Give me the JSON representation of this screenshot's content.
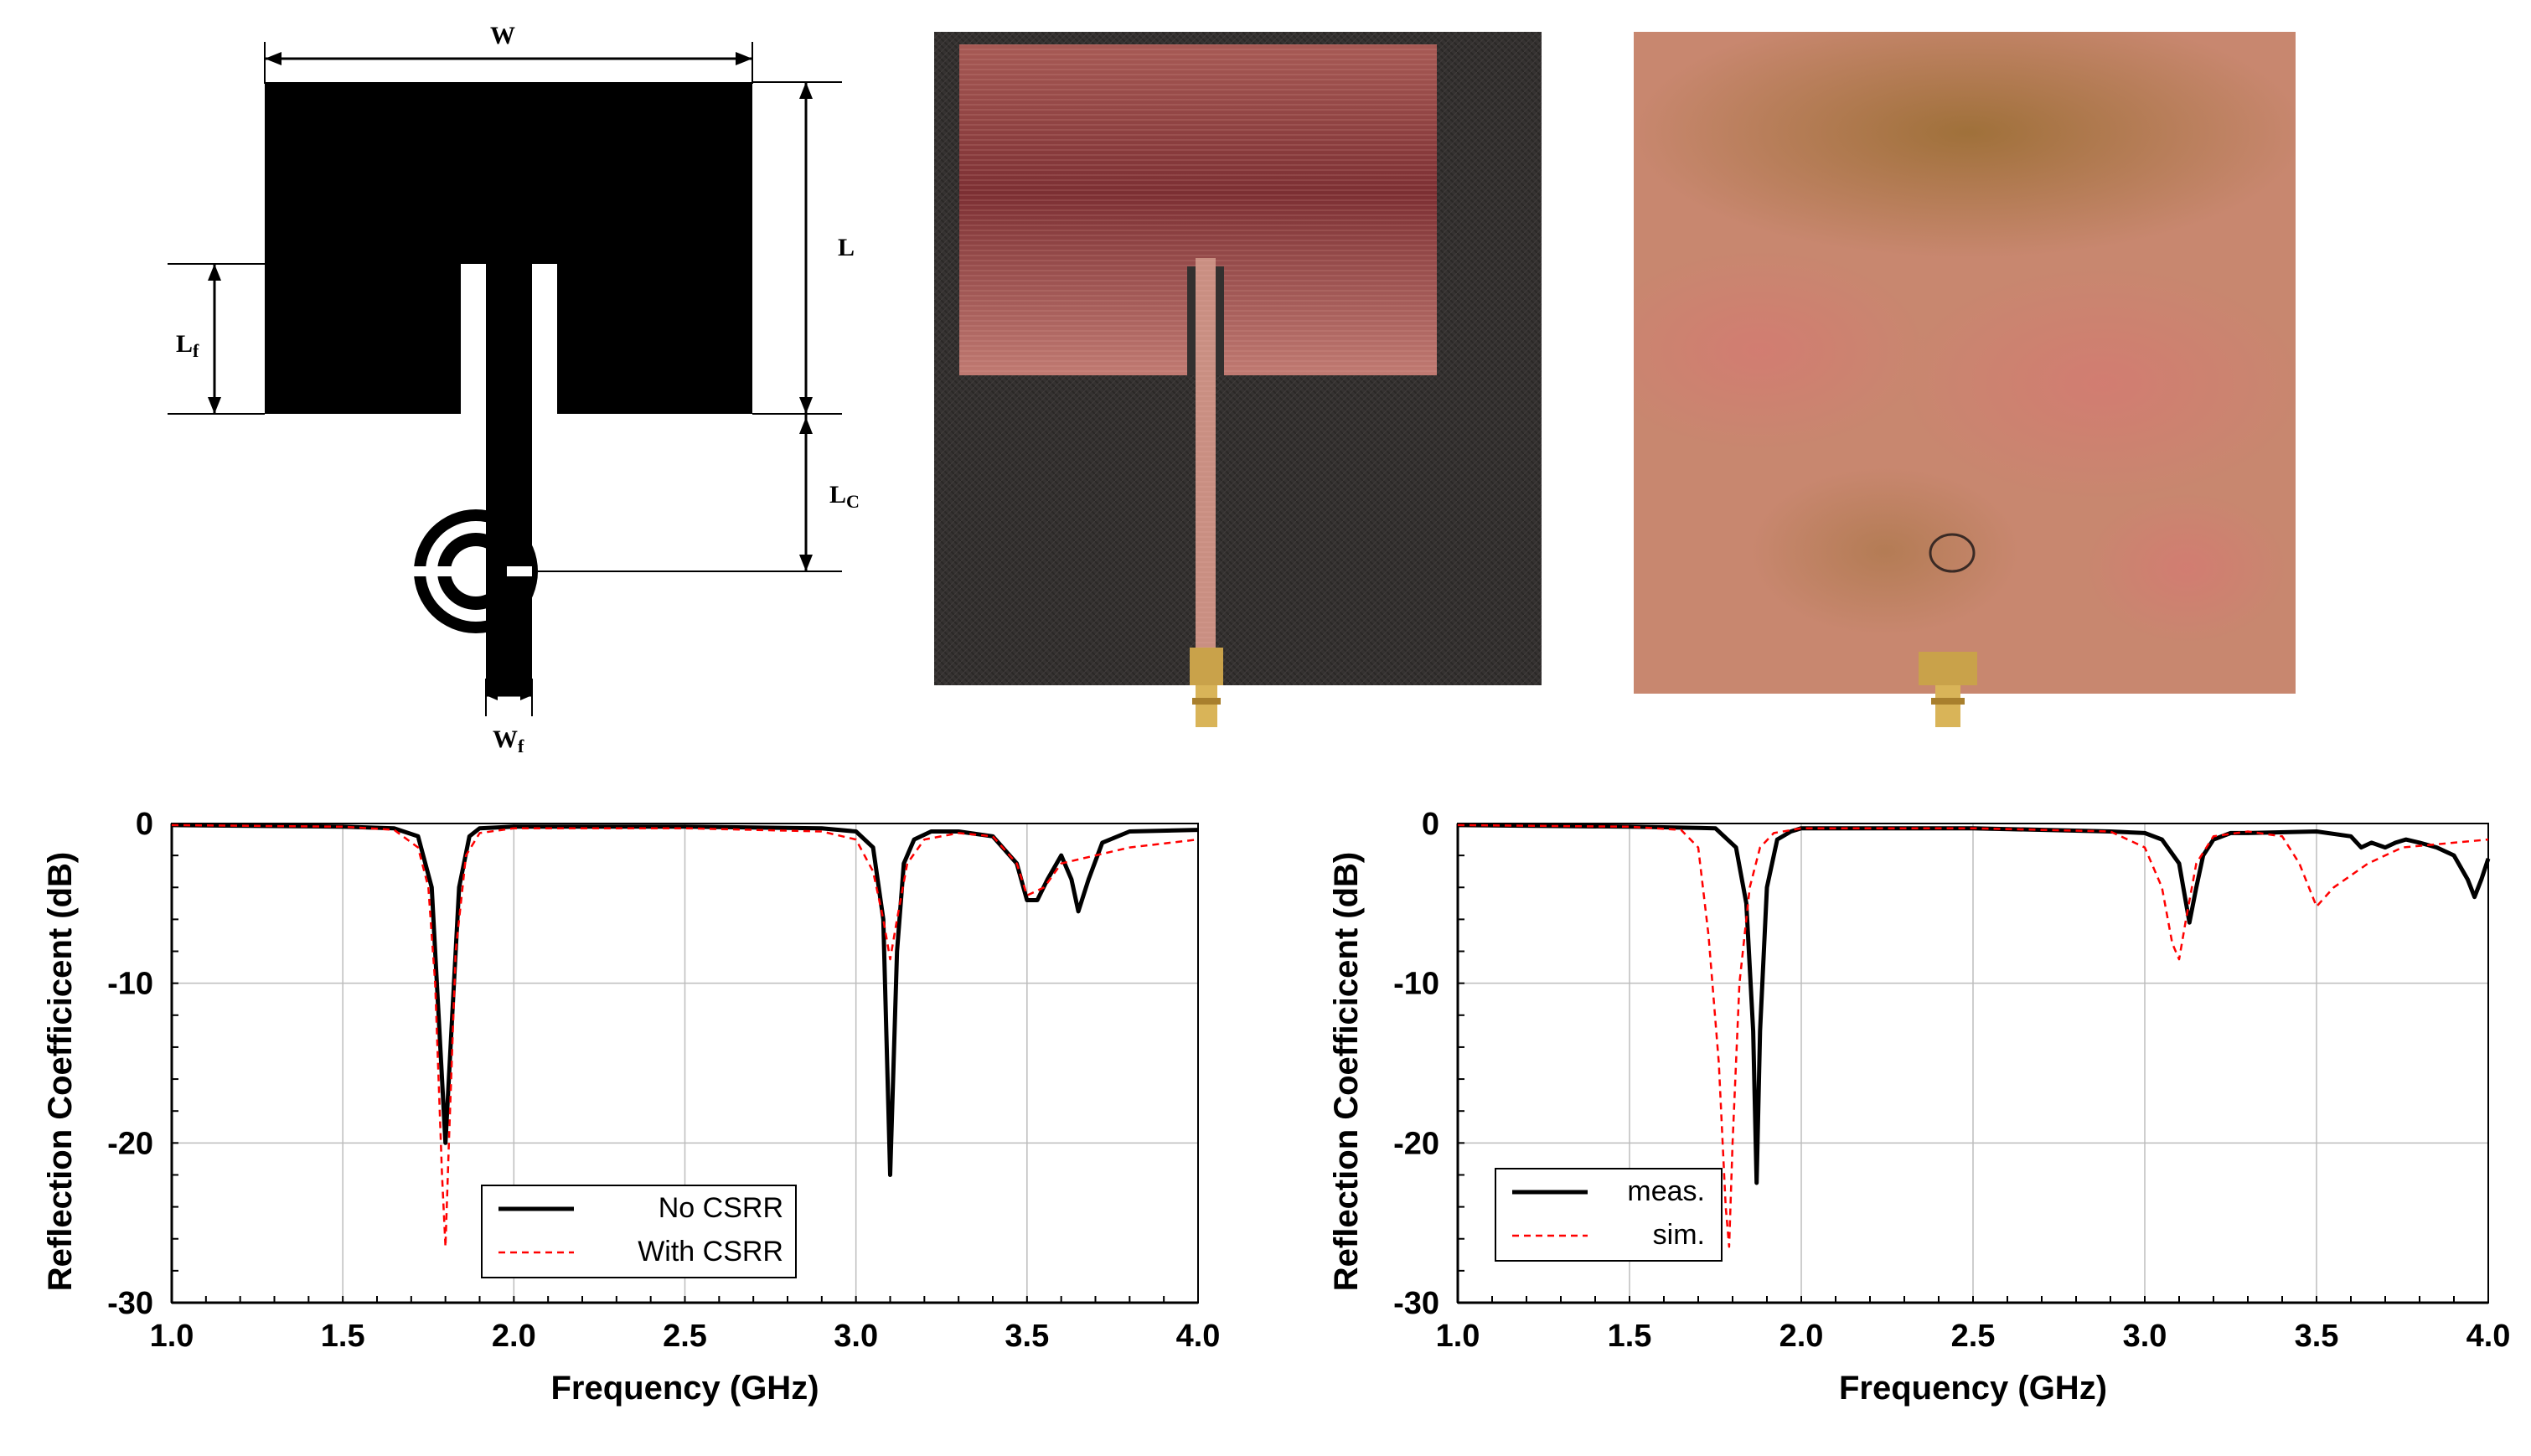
{
  "schematic": {
    "labels": {
      "w": "W",
      "l": "L",
      "lf_main": "L",
      "lf_sub": "f",
      "lc_main": "L",
      "lc_sub": "C",
      "wf_main": "W",
      "wf_sub": "f"
    }
  },
  "photos": {
    "front": {
      "substrate": "#33302f",
      "patch": "#7e3434",
      "connector": "#c9a24a"
    },
    "back": {
      "copper": "#c7806b",
      "oxide": "#a2743a",
      "connector": "#c9a24a"
    }
  },
  "chart_data": [
    {
      "type": "line",
      "xlabel": "Frequency (GHz)",
      "ylabel": "Reflection Coefficicent (dB)",
      "xlim": [
        1.0,
        4.0
      ],
      "ylim": [
        -30,
        0
      ],
      "xticks": [
        "1.0",
        "1.5",
        "2.0",
        "2.5",
        "3.0",
        "3.5",
        "4.0"
      ],
      "yticks": [
        "0",
        "-10",
        "-20",
        "-30"
      ],
      "grid": true,
      "legend_position": "bottom-center",
      "series": [
        {
          "name": "No CSRR",
          "color": "#000000",
          "style": "solid",
          "x": [
            1.0,
            1.5,
            1.65,
            1.72,
            1.76,
            1.78,
            1.8,
            1.82,
            1.84,
            1.87,
            1.9,
            2.0,
            2.5,
            2.9,
            3.0,
            3.05,
            3.08,
            3.1,
            3.12,
            3.14,
            3.17,
            3.22,
            3.3,
            3.4,
            3.47,
            3.5,
            3.53,
            3.56,
            3.6,
            3.63,
            3.65,
            3.68,
            3.72,
            3.8,
            4.0
          ],
          "y": [
            -0.1,
            -0.2,
            -0.3,
            -0.8,
            -4,
            -12,
            -20,
            -12,
            -4,
            -0.8,
            -0.3,
            -0.2,
            -0.2,
            -0.3,
            -0.5,
            -1.5,
            -6,
            -22,
            -8,
            -2.5,
            -1,
            -0.5,
            -0.5,
            -0.8,
            -2.5,
            -4.8,
            -4.8,
            -3.5,
            -2,
            -3.5,
            -5.5,
            -3.5,
            -1.2,
            -0.5,
            -0.4
          ]
        },
        {
          "name": "With CSRR",
          "color": "#ff0000",
          "style": "dashed",
          "x": [
            1.0,
            1.5,
            1.65,
            1.72,
            1.75,
            1.77,
            1.79,
            1.8,
            1.81,
            1.83,
            1.86,
            1.9,
            2.0,
            2.5,
            2.9,
            3.0,
            3.05,
            3.08,
            3.1,
            3.12,
            3.15,
            3.2,
            3.3,
            3.4,
            3.47,
            3.5,
            3.55,
            3.6,
            3.7,
            3.8,
            4.0
          ],
          "y": [
            -0.1,
            -0.2,
            -0.4,
            -1.5,
            -4,
            -10,
            -22,
            -26.5,
            -20,
            -8,
            -2,
            -0.6,
            -0.3,
            -0.3,
            -0.5,
            -1,
            -3,
            -6,
            -8.5,
            -6,
            -2.5,
            -1,
            -0.6,
            -0.8,
            -2.5,
            -4.5,
            -4,
            -2.5,
            -2,
            -1.5,
            -1
          ]
        }
      ]
    },
    {
      "type": "line",
      "xlabel": "Frequency (GHz)",
      "ylabel": "Reflection Coefficicent (dB)",
      "xlim": [
        1.0,
        4.0
      ],
      "ylim": [
        -30,
        0
      ],
      "xticks": [
        "1.0",
        "1.5",
        "2.0",
        "2.5",
        "3.0",
        "3.5",
        "4.0"
      ],
      "yticks": [
        "0",
        "-10",
        "-20",
        "-30"
      ],
      "grid": true,
      "legend_position": "bottom-left",
      "series": [
        {
          "name": "meas.",
          "color": "#000000",
          "style": "solid",
          "x": [
            1.0,
            1.5,
            1.75,
            1.81,
            1.84,
            1.86,
            1.87,
            1.88,
            1.9,
            1.93,
            1.97,
            2.0,
            2.5,
            2.9,
            3.0,
            3.05,
            3.1,
            3.13,
            3.15,
            3.17,
            3.2,
            3.25,
            3.3,
            3.5,
            3.6,
            3.63,
            3.66,
            3.7,
            3.73,
            3.76,
            3.8,
            3.85,
            3.9,
            3.94,
            3.96,
            3.98,
            4.0
          ],
          "y": [
            -0.1,
            -0.2,
            -0.3,
            -1.5,
            -5,
            -13,
            -22.5,
            -13,
            -4,
            -1,
            -0.5,
            -0.3,
            -0.3,
            -0.5,
            -0.6,
            -1.0,
            -2.5,
            -6.2,
            -4,
            -2,
            -1,
            -0.6,
            -0.6,
            -0.5,
            -0.8,
            -1.5,
            -1.2,
            -1.5,
            -1.2,
            -1.0,
            -1.2,
            -1.5,
            -2.0,
            -3.5,
            -4.6,
            -3.5,
            -2.2
          ]
        },
        {
          "name": "sim.",
          "color": "#ff0000",
          "style": "dashed",
          "x": [
            1.0,
            1.5,
            1.65,
            1.7,
            1.73,
            1.76,
            1.78,
            1.79,
            1.8,
            1.82,
            1.85,
            1.88,
            1.92,
            2.0,
            2.5,
            2.9,
            3.0,
            3.05,
            3.08,
            3.1,
            3.12,
            3.15,
            3.2,
            3.3,
            3.4,
            3.45,
            3.5,
            3.55,
            3.65,
            3.75,
            3.9,
            4.0
          ],
          "y": [
            -0.1,
            -0.2,
            -0.4,
            -1.5,
            -7,
            -15,
            -24,
            -26.5,
            -20,
            -10,
            -4,
            -1.5,
            -0.6,
            -0.3,
            -0.3,
            -0.5,
            -1.5,
            -4,
            -7.5,
            -8.5,
            -6,
            -2.5,
            -0.8,
            -0.5,
            -0.8,
            -2.5,
            -5.2,
            -4,
            -2.5,
            -1.5,
            -1.2,
            -1.0
          ]
        }
      ]
    }
  ]
}
